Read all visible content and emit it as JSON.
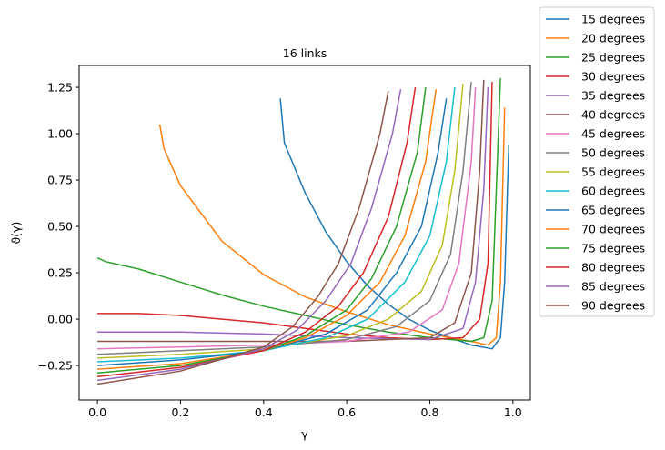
{
  "chart_data": {
    "type": "line",
    "title": "16 links",
    "x_label": "γ",
    "y_label": "ϑ(γ)",
    "xlim": [
      -0.044,
      1.042
    ],
    "ylim": [
      -0.436,
      1.368
    ],
    "xticks": [
      {
        "value": 0,
        "label": "0.0"
      },
      0.2,
      0.4,
      0.6,
      0.8,
      {
        "value": 1,
        "label": "1.0"
      }
    ],
    "yticks": [
      {
        "value": -0.25,
        "label": "−0.25"
      },
      {
        "value": 0,
        "label": "0.00"
      },
      0.25,
      {
        "value": 0.5,
        "label": "0.50"
      },
      0.75,
      {
        "value": 1,
        "label": "1.00"
      },
      1.25
    ],
    "grid": false,
    "legend": "right",
    "series": [
      {
        "name": "15 degrees",
        "color": "#1f77b4",
        "x": [
          0.44,
          0.45,
          0.5,
          0.55,
          0.6,
          0.65,
          0.7,
          0.75,
          0.8,
          0.85,
          0.9,
          0.95,
          0.97,
          0.98,
          0.99
        ],
        "values": [
          1.19,
          0.95,
          0.68,
          0.47,
          0.31,
          0.18,
          0.08,
          0.0,
          -0.06,
          -0.1,
          -0.14,
          -0.16,
          -0.1,
          0.2,
          0.94
        ]
      },
      {
        "name": "20 degrees",
        "color": "#ff7f0e",
        "x": [
          0.15,
          0.16,
          0.2,
          0.3,
          0.4,
          0.5,
          0.6,
          0.7,
          0.8,
          0.9,
          0.94,
          0.96,
          0.97,
          0.98
        ],
        "values": [
          1.05,
          0.92,
          0.72,
          0.42,
          0.24,
          0.12,
          0.04,
          -0.03,
          -0.08,
          -0.12,
          -0.14,
          -0.1,
          0.2,
          1.14
        ]
      },
      {
        "name": "25 degrees",
        "color": "#2ca02c",
        "x": [
          0.0,
          0.02,
          0.1,
          0.2,
          0.3,
          0.4,
          0.5,
          0.6,
          0.7,
          0.8,
          0.9,
          0.93,
          0.95,
          0.97
        ],
        "values": [
          0.33,
          0.31,
          0.27,
          0.2,
          0.13,
          0.07,
          0.02,
          -0.03,
          -0.07,
          -0.1,
          -0.12,
          -0.1,
          0.1,
          1.3
        ]
      },
      {
        "name": "30 degrees",
        "color": "#d62728",
        "x": [
          0.0,
          0.1,
          0.2,
          0.3,
          0.4,
          0.5,
          0.6,
          0.7,
          0.8,
          0.88,
          0.92,
          0.94,
          0.95
        ],
        "values": [
          0.03,
          0.03,
          0.02,
          0.0,
          -0.02,
          -0.05,
          -0.08,
          -0.1,
          -0.11,
          -0.1,
          0.0,
          0.3,
          1.28
        ]
      },
      {
        "name": "35 degrees",
        "color": "#9467bd",
        "x": [
          0,
          0.2,
          0.4,
          0.6,
          0.8,
          0.88,
          0.91,
          0.93,
          0.94
        ],
        "values": [
          -0.07,
          -0.07,
          -0.08,
          -0.1,
          -0.11,
          -0.05,
          0.2,
          0.7,
          1.25
        ]
      },
      {
        "name": "40 degrees",
        "color": "#8c564b",
        "x": [
          0,
          0.2,
          0.4,
          0.6,
          0.8,
          0.86,
          0.9,
          0.92,
          0.93
        ],
        "values": [
          -0.12,
          -0.12,
          -0.12,
          -0.12,
          -0.1,
          -0.02,
          0.25,
          0.8,
          1.29
        ]
      },
      {
        "name": "45 degrees",
        "color": "#e377c2",
        "x": [
          0,
          0.2,
          0.4,
          0.6,
          0.75,
          0.83,
          0.87,
          0.9,
          0.91
        ],
        "values": [
          -0.16,
          -0.15,
          -0.14,
          -0.12,
          -0.07,
          0.05,
          0.3,
          0.85,
          1.25
        ]
      },
      {
        "name": "50 degrees",
        "color": "#7f7f7f",
        "x": [
          0,
          0.2,
          0.4,
          0.6,
          0.72,
          0.8,
          0.85,
          0.88,
          0.9
        ],
        "values": [
          -0.19,
          -0.17,
          -0.15,
          -0.11,
          -0.04,
          0.1,
          0.35,
          0.8,
          1.28
        ]
      },
      {
        "name": "55 degrees",
        "color": "#bcbd22",
        "x": [
          0,
          0.2,
          0.4,
          0.6,
          0.7,
          0.78,
          0.83,
          0.86,
          0.88
        ],
        "values": [
          -0.21,
          -0.19,
          -0.16,
          -0.09,
          0.0,
          0.15,
          0.4,
          0.8,
          1.27
        ]
      },
      {
        "name": "60 degrees",
        "color": "#17becf",
        "x": [
          0,
          0.2,
          0.4,
          0.55,
          0.65,
          0.74,
          0.8,
          0.84,
          0.86
        ],
        "values": [
          -0.23,
          -0.21,
          -0.17,
          -0.1,
          0.0,
          0.2,
          0.45,
          0.85,
          1.25
        ]
      },
      {
        "name": "65 degrees",
        "color": "#1f77b4",
        "x": [
          0,
          0.2,
          0.4,
          0.55,
          0.65,
          0.72,
          0.78,
          0.82,
          0.84
        ],
        "values": [
          -0.25,
          -0.22,
          -0.17,
          -0.08,
          0.05,
          0.25,
          0.5,
          0.9,
          1.19
        ]
      },
      {
        "name": "70 degrees",
        "color": "#ff7f0e",
        "x": [
          0,
          0.2,
          0.4,
          0.5,
          0.6,
          0.68,
          0.74,
          0.79,
          0.815
        ],
        "values": [
          -0.27,
          -0.24,
          -0.17,
          -0.1,
          0.02,
          0.2,
          0.45,
          0.85,
          1.24
        ]
      },
      {
        "name": "75 degrees",
        "color": "#2ca02c",
        "x": [
          0,
          0.2,
          0.4,
          0.5,
          0.6,
          0.66,
          0.72,
          0.77,
          0.79
        ],
        "values": [
          -0.29,
          -0.25,
          -0.17,
          -0.09,
          0.05,
          0.22,
          0.5,
          0.9,
          1.25
        ]
      },
      {
        "name": "80 degrees",
        "color": "#d62728",
        "x": [
          0,
          0.2,
          0.4,
          0.5,
          0.58,
          0.64,
          0.7,
          0.745,
          0.765
        ],
        "values": [
          -0.31,
          -0.26,
          -0.17,
          -0.07,
          0.07,
          0.25,
          0.55,
          0.95,
          1.25
        ]
      },
      {
        "name": "85 degrees",
        "color": "#9467bd",
        "x": [
          0,
          0.2,
          0.4,
          0.48,
          0.55,
          0.61,
          0.66,
          0.71,
          0.73
        ],
        "values": [
          -0.33,
          -0.27,
          -0.16,
          -0.06,
          0.1,
          0.3,
          0.6,
          1.0,
          1.24
        ]
      },
      {
        "name": "90 degrees",
        "color": "#8c564b",
        "x": [
          0,
          0.2,
          0.4,
          0.47,
          0.53,
          0.58,
          0.63,
          0.68,
          0.7
        ],
        "values": [
          -0.35,
          -0.28,
          -0.15,
          -0.04,
          0.12,
          0.3,
          0.6,
          1.0,
          1.23
        ]
      }
    ]
  }
}
